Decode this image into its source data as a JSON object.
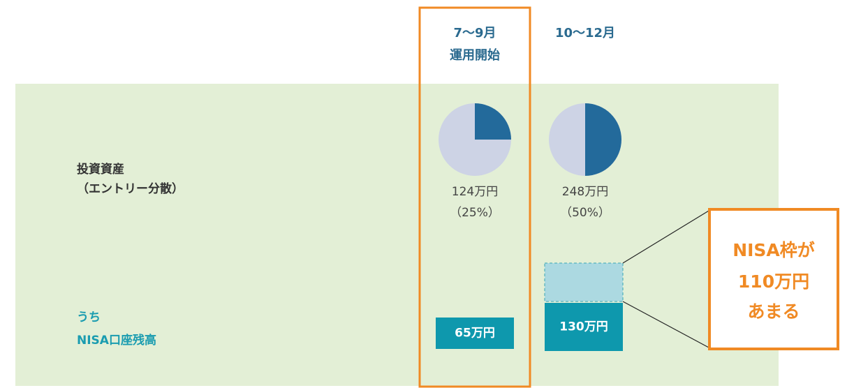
{
  "row_labels": {
    "assets": [
      "投資資産",
      "（エントリー分散）"
    ],
    "nisa": [
      "うち",
      "NISA口座残高"
    ]
  },
  "columns": [
    {
      "header": [
        "7〜9月",
        "運用開始"
      ],
      "amount": "124万円",
      "share": 25,
      "share_label": "（25%）",
      "nisa_balance": "65万円"
    },
    {
      "header": [
        "10〜12月"
      ],
      "amount": "248万円",
      "share": 50,
      "share_label": "（50%）",
      "nisa_balance": "130万円"
    }
  ],
  "callout": [
    "NISA枠が",
    "110万円",
    "あまる"
  ]
}
